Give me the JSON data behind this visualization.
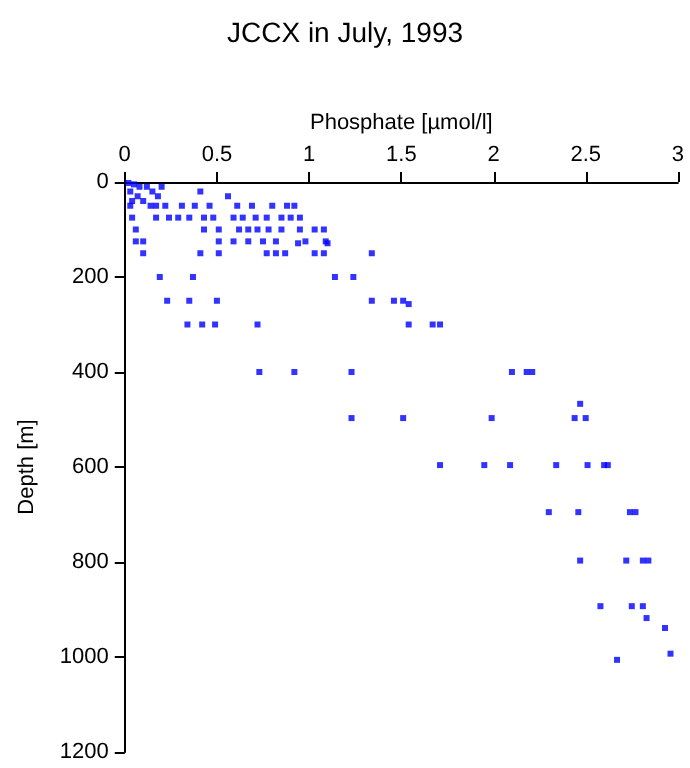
{
  "chart_data": {
    "type": "scatter",
    "title": "JCCX in July, 1993",
    "xlabel": "Phosphate [µmol/l]",
    "ylabel": "Depth [m]",
    "color": "#0000ff",
    "marker": "square",
    "grid": false,
    "x": [
      0.02,
      0.05,
      0.08,
      0.12,
      0.2,
      0.03,
      0.15,
      0.07,
      0.18,
      0.04,
      0.1,
      0.41,
      0.56,
      0.03,
      0.14,
      0.17,
      0.22,
      0.31,
      0.38,
      0.46,
      0.61,
      0.69,
      0.8,
      0.88,
      0.92,
      0.04,
      0.17,
      0.24,
      0.29,
      0.35,
      0.43,
      0.48,
      0.59,
      0.64,
      0.71,
      0.77,
      0.85,
      0.9,
      0.95,
      0.06,
      0.43,
      0.51,
      0.62,
      0.67,
      0.72,
      0.78,
      0.85,
      0.95,
      1.03,
      1.08,
      0.06,
      0.1,
      0.51,
      0.59,
      0.67,
      0.75,
      0.82,
      0.98,
      1.09,
      0.94,
      1.1,
      0.1,
      0.41,
      0.51,
      0.77,
      0.82,
      0.87,
      1.03,
      1.08,
      1.34,
      0.19,
      0.37,
      1.14,
      1.24,
      0.23,
      0.35,
      0.5,
      1.34,
      1.46,
      1.51,
      1.54,
      0.34,
      0.42,
      0.49,
      0.72,
      1.54,
      1.67,
      1.71,
      0.73,
      0.92,
      1.23,
      2.1,
      2.18,
      2.21,
      1.23,
      1.51,
      1.99,
      2.44,
      2.5,
      2.47,
      1.71,
      1.95,
      2.09,
      2.34,
      2.51,
      2.6,
      2.62,
      2.3,
      2.46,
      2.74,
      2.77,
      2.47,
      2.72,
      2.81,
      2.84,
      2.58,
      2.75,
      2.81,
      2.83,
      2.93,
      2.96,
      2.67
    ],
    "values": [
      2,
      5,
      10,
      10,
      10,
      20,
      20,
      30,
      30,
      40,
      40,
      20,
      30,
      50,
      50,
      50,
      50,
      50,
      50,
      50,
      50,
      50,
      50,
      50,
      50,
      75,
      75,
      75,
      75,
      75,
      75,
      75,
      75,
      75,
      75,
      75,
      75,
      75,
      75,
      100,
      100,
      100,
      100,
      100,
      100,
      100,
      100,
      100,
      100,
      100,
      125,
      125,
      125,
      125,
      125,
      125,
      125,
      125,
      125,
      129,
      129,
      150,
      150,
      150,
      150,
      150,
      150,
      150,
      150,
      150,
      200,
      200,
      200,
      200,
      250,
      250,
      250,
      250,
      250,
      250,
      257,
      300,
      300,
      300,
      300,
      300,
      300,
      300,
      400,
      400,
      400,
      400,
      400,
      400,
      497,
      497,
      497,
      497,
      497,
      467,
      596,
      596,
      596,
      596,
      596,
      596,
      596,
      695,
      695,
      695,
      695,
      797,
      797,
      797,
      797,
      893,
      893,
      893,
      918,
      939,
      993,
      1006
    ],
    "xlim": [
      0,
      3
    ],
    "xticks": [
      0,
      0.5,
      1,
      1.5,
      2,
      2.5,
      3
    ],
    "ylim": [
      1200,
      0
    ],
    "yticks": [
      0,
      200,
      400,
      600,
      800,
      1000,
      1200
    ]
  }
}
